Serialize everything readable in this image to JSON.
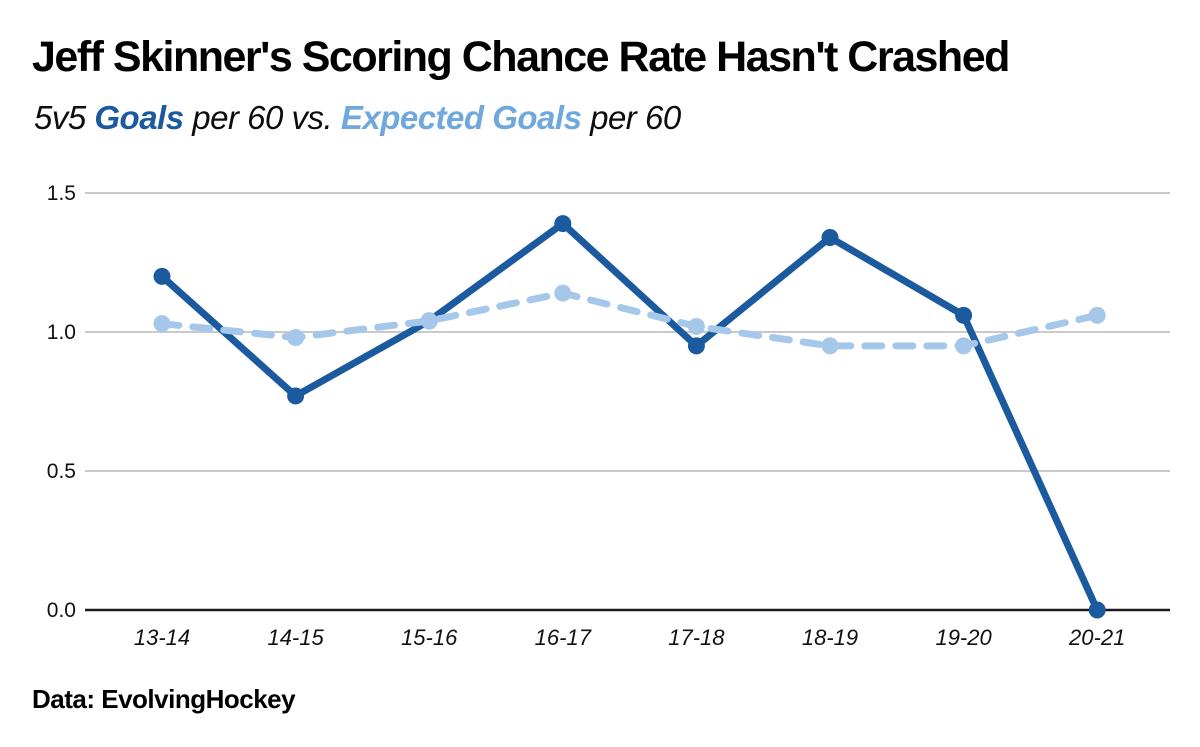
{
  "page": {
    "title": "Jeff Skinner's Scoring Chance Rate Hasn't Crashed",
    "subtitle": {
      "prefix": "5v5 ",
      "goals_label": "Goals",
      "middle": " per 60 vs. ",
      "expected_goals_label": "Expected Goals",
      "suffix": " per 60"
    },
    "credit": "Data: EvolvingHockey"
  },
  "colors": {
    "goals_line": "#1b5a9e",
    "expected_goals_line": "#a5c8ea",
    "subtitle_goals_text": "#1b5a9e",
    "subtitle_expected_goals_text": "#6fa8dc",
    "gridline": "#c9c9c9",
    "axis_line": "#1a1a1a",
    "text": "#000000"
  },
  "chart_data": {
    "type": "line",
    "title": "Jeff Skinner's Scoring Chance Rate Hasn't Crashed",
    "subtitle": "5v5 Goals per 60 vs. Expected Goals per 60",
    "categories": [
      "13-14",
      "14-15",
      "15-16",
      "16-17",
      "17-18",
      "18-19",
      "19-20",
      "20-21"
    ],
    "series": [
      {
        "name": "Goals per 60",
        "style": "solid",
        "color_key": "goals_line",
        "values": [
          1.2,
          0.77,
          1.04,
          1.39,
          0.95,
          1.34,
          1.06,
          0.0
        ]
      },
      {
        "name": "Expected Goals per 60",
        "style": "dashed",
        "color_key": "expected_goals_line",
        "values": [
          1.03,
          0.98,
          1.04,
          1.14,
          1.02,
          0.95,
          0.95,
          1.06
        ]
      }
    ],
    "xlabel": "",
    "ylabel": "",
    "ylim": [
      0.0,
      1.5
    ],
    "yticks": [
      0.0,
      0.5,
      1.0,
      1.5
    ],
    "ytick_labels": [
      "0.0",
      "0.5",
      "1.0",
      "1.5"
    ],
    "grid": true,
    "legend_position": "none (series identified by colored words in subtitle)",
    "annotation": "Data: EvolvingHockey"
  }
}
